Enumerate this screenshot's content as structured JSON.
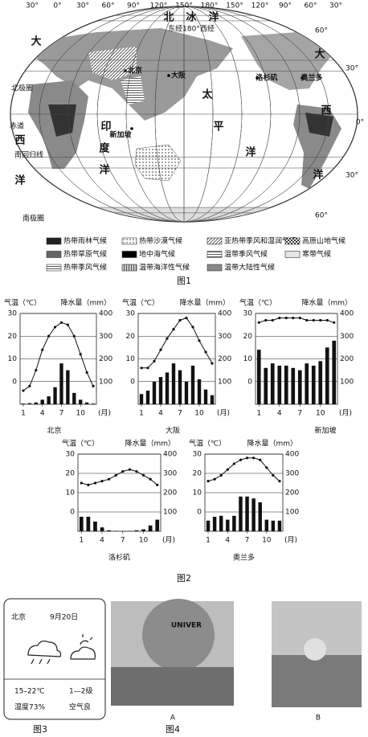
{
  "figure1": {
    "meridian_labels": [
      "30°",
      "0°",
      "30°",
      "60°",
      "90°",
      "120°",
      "150°",
      "180°",
      "150°",
      "120°",
      "90°",
      "60°",
      "30°"
    ],
    "latitude_labels": [
      "60°",
      "30°",
      "0°",
      "30°",
      "60°"
    ],
    "line_labels": [
      "北极圈",
      "赤道",
      "南回归线",
      "南极圈"
    ],
    "meridian_note": "东经180°西经",
    "oceans": [
      "北",
      "冰",
      "洋",
      "大",
      "西",
      "洋",
      "印",
      "度",
      "洋",
      "太",
      "平",
      "洋",
      "大",
      "西",
      "洋"
    ],
    "cities": [
      "北京",
      "大阪",
      "新加坡",
      "洛杉矶",
      "奥兰多"
    ],
    "legend": [
      "热带雨林气候",
      "热带沙漠气候",
      "亚热带季风和湿润气候",
      "高原山地气候",
      "热带草原气候",
      "地中海气候",
      "温带季风气候",
      "寒带气候",
      "热带季风气候",
      "温带海洋性气候",
      "温带大陆性气候"
    ],
    "caption": "图1"
  },
  "figure2": {
    "temp_label": "气温（℃）",
    "precip_label": "降水量（mm）",
    "ylim": [
      -10,
      30
    ],
    "yticks": [
      0,
      10,
      20,
      30
    ],
    "y2lim": [
      0,
      400
    ],
    "y2ticks": [
      100,
      200,
      300,
      400
    ],
    "xticks": [
      1,
      4,
      7,
      10
    ],
    "x_unit": "(月)",
    "charts": [
      {
        "name": "北京",
        "temperature": [
          -4,
          -2,
          5,
          14,
          20,
          24,
          26,
          25,
          20,
          12,
          4,
          -2
        ],
        "precipitation": [
          3,
          5,
          8,
          20,
          35,
          75,
          180,
          150,
          50,
          20,
          8,
          3
        ]
      },
      {
        "name": "大阪",
        "temperature": [
          6,
          6,
          9,
          14,
          19,
          23,
          27,
          28,
          24,
          18,
          13,
          8
        ],
        "precipitation": [
          45,
          60,
          100,
          120,
          140,
          180,
          150,
          100,
          170,
          110,
          65,
          40
        ]
      },
      {
        "name": "新加坡",
        "temperature": [
          26,
          27,
          27,
          28,
          28,
          28,
          28,
          27,
          27,
          27,
          27,
          26
        ],
        "precipitation": [
          240,
          160,
          180,
          170,
          170,
          160,
          150,
          180,
          170,
          190,
          250,
          280
        ]
      },
      {
        "name": "洛杉矶",
        "temperature": [
          15,
          14,
          15,
          16,
          17,
          19,
          21,
          22,
          21,
          19,
          17,
          14
        ],
        "precipitation": [
          75,
          75,
          50,
          20,
          5,
          2,
          1,
          2,
          5,
          10,
          30,
          60
        ]
      },
      {
        "name": "奥兰多",
        "temperature": [
          16,
          17,
          19,
          22,
          25,
          27,
          28,
          28,
          27,
          23,
          19,
          16
        ],
        "precipitation": [
          55,
          75,
          80,
          60,
          80,
          180,
          180,
          170,
          150,
          60,
          55,
          55
        ]
      }
    ],
    "caption": "图2"
  },
  "figure3": {
    "city": "北京",
    "date": "9月20日",
    "temperature": "15–22℃",
    "wind": "1—2级",
    "humidity": "湿度73%",
    "air": "空气良",
    "caption": "图3"
  },
  "figure4": {
    "photo_text": "UNIVER",
    "labels": [
      "A",
      "B"
    ],
    "caption": "图4"
  }
}
